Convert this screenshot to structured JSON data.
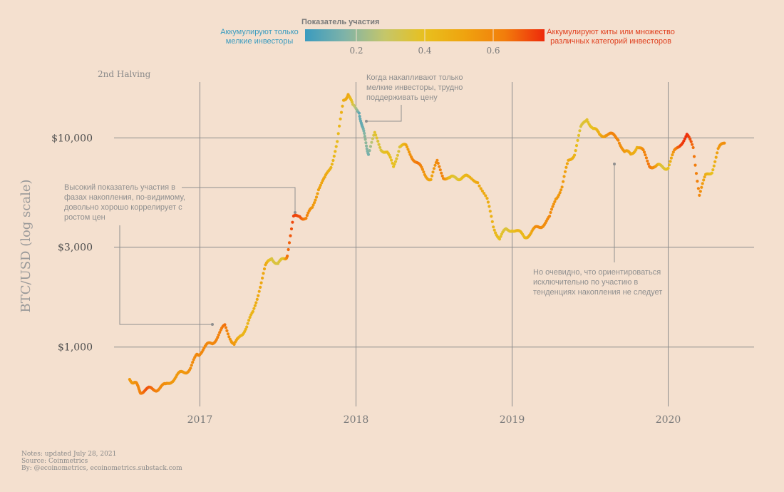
{
  "chart_data": {
    "type": "scatter",
    "title": "",
    "xlabel": "",
    "ylabel": "BTC/USD (log scale)",
    "y_scale": "log",
    "y_ticks": [
      {
        "value": 1000,
        "label": "$1,000"
      },
      {
        "value": 3000,
        "label": "$3,000"
      },
      {
        "value": 10000,
        "label": "$10,000"
      }
    ],
    "x_ticks": [
      {
        "value": 2017.0,
        "label": "2017"
      },
      {
        "value": 2018.0,
        "label": "2018"
      },
      {
        "value": 2019.0,
        "label": "2019"
      },
      {
        "value": 2020.0,
        "label": "2020"
      }
    ],
    "xlim": [
      2016.45,
      2020.55
    ],
    "ylim": [
      520,
      18500
    ],
    "grid": true,
    "vertical_marker": {
      "x": 2016.52,
      "label": "2nd Halving"
    },
    "color_legend": {
      "title": "Показатель участия",
      "left_label": [
        "Аккумулируют только",
        "мелкие инвесторы"
      ],
      "right_label": [
        "Аккумулируют киты или множество",
        "различных категорий инвесторов"
      ],
      "ticks": [
        0.2,
        0.4,
        0.6
      ],
      "range": [
        0.05,
        0.75
      ],
      "colors": [
        "#3a9bbf",
        "#7fb3a8",
        "#c5c66a",
        "#e8c01e",
        "#efa30f",
        "#f27d0c",
        "#ee2a0b"
      ]
    },
    "series": [
      {
        "color_by": "participation",
        "points": [
          [
            2016.55,
            700,
            0.55
          ],
          [
            2016.58,
            690,
            0.55
          ],
          [
            2016.6,
            640,
            0.6
          ],
          [
            2016.62,
            620,
            0.62
          ],
          [
            2016.66,
            620,
            0.7
          ],
          [
            2016.7,
            630,
            0.65
          ],
          [
            2016.74,
            640,
            0.6
          ],
          [
            2016.78,
            650,
            0.58
          ],
          [
            2016.82,
            700,
            0.55
          ],
          [
            2016.86,
            730,
            0.55
          ],
          [
            2016.9,
            760,
            0.55
          ],
          [
            2016.94,
            800,
            0.58
          ],
          [
            2016.98,
            900,
            0.6
          ],
          [
            2017.0,
            950,
            0.6
          ],
          [
            2017.04,
            1000,
            0.6
          ],
          [
            2017.08,
            1050,
            0.6
          ],
          [
            2017.12,
            1150,
            0.62
          ],
          [
            2017.16,
            1250,
            0.65
          ],
          [
            2017.2,
            1100,
            0.55
          ],
          [
            2017.22,
            1000,
            0.55
          ],
          [
            2017.26,
            1150,
            0.45
          ],
          [
            2017.3,
            1250,
            0.45
          ],
          [
            2017.34,
            1450,
            0.45
          ],
          [
            2017.38,
            1900,
            0.5
          ],
          [
            2017.42,
            2400,
            0.5
          ],
          [
            2017.46,
            2700,
            0.35
          ],
          [
            2017.5,
            2500,
            0.35
          ],
          [
            2017.54,
            2600,
            0.38
          ],
          [
            2017.56,
            2800,
            0.65
          ],
          [
            2017.6,
            4100,
            0.72
          ],
          [
            2017.64,
            4300,
            0.7
          ],
          [
            2017.68,
            4100,
            0.62
          ],
          [
            2017.72,
            4600,
            0.55
          ],
          [
            2017.76,
            5800,
            0.52
          ],
          [
            2017.8,
            6300,
            0.5
          ],
          [
            2017.84,
            7400,
            0.45
          ],
          [
            2017.88,
            9500,
            0.42
          ],
          [
            2017.92,
            15000,
            0.48
          ],
          [
            2017.95,
            16500,
            0.5
          ],
          [
            2017.98,
            14000,
            0.35
          ],
          [
            2018.02,
            13500,
            0.12
          ],
          [
            2018.04,
            11200,
            0.12
          ],
          [
            2018.06,
            9800,
            0.2
          ],
          [
            2018.08,
            8500,
            0.15
          ],
          [
            2018.12,
            10300,
            0.38
          ],
          [
            2018.16,
            9000,
            0.35
          ],
          [
            2018.2,
            8400,
            0.42
          ],
          [
            2018.24,
            7300,
            0.4
          ],
          [
            2018.28,
            9200,
            0.35
          ],
          [
            2018.32,
            9000,
            0.5
          ],
          [
            2018.36,
            8200,
            0.6
          ],
          [
            2018.4,
            7400,
            0.65
          ],
          [
            2018.44,
            6700,
            0.55
          ],
          [
            2018.48,
            6400,
            0.5
          ],
          [
            2018.52,
            7600,
            0.6
          ],
          [
            2018.56,
            6600,
            0.62
          ],
          [
            2018.6,
            6300,
            0.42
          ],
          [
            2018.64,
            6500,
            0.35
          ],
          [
            2018.68,
            6500,
            0.42
          ],
          [
            2018.72,
            6400,
            0.45
          ],
          [
            2018.78,
            6300,
            0.5
          ],
          [
            2018.84,
            5000,
            0.48
          ],
          [
            2018.88,
            3800,
            0.45
          ],
          [
            2018.92,
            3300,
            0.4
          ],
          [
            2018.96,
            3600,
            0.35
          ],
          [
            2019.0,
            3700,
            0.4
          ],
          [
            2019.04,
            3500,
            0.45
          ],
          [
            2019.08,
            3400,
            0.42
          ],
          [
            2019.12,
            3500,
            0.5
          ],
          [
            2019.16,
            3700,
            0.6
          ],
          [
            2019.2,
            3900,
            0.58
          ],
          [
            2019.24,
            4100,
            0.6
          ],
          [
            2019.28,
            5200,
            0.55
          ],
          [
            2019.32,
            5800,
            0.55
          ],
          [
            2019.36,
            7700,
            0.5
          ],
          [
            2019.4,
            8500,
            0.45
          ],
          [
            2019.44,
            11000,
            0.35
          ],
          [
            2019.48,
            12500,
            0.38
          ],
          [
            2019.52,
            11000,
            0.4
          ],
          [
            2019.56,
            10300,
            0.48
          ],
          [
            2019.6,
            10500,
            0.55
          ],
          [
            2019.64,
            10200,
            0.62
          ],
          [
            2019.68,
            10000,
            0.6
          ],
          [
            2019.72,
            8500,
            0.55
          ],
          [
            2019.76,
            8300,
            0.5
          ],
          [
            2019.8,
            9200,
            0.45
          ],
          [
            2019.84,
            8500,
            0.6
          ],
          [
            2019.88,
            7500,
            0.65
          ],
          [
            2019.92,
            7200,
            0.55
          ],
          [
            2019.96,
            7300,
            0.35
          ],
          [
            2020.0,
            7300,
            0.4
          ],
          [
            2020.04,
            8500,
            0.6
          ],
          [
            2020.08,
            9500,
            0.72
          ],
          [
            2020.12,
            10200,
            0.75
          ],
          [
            2020.16,
            9000,
            0.65
          ],
          [
            2020.2,
            5400,
            0.6
          ],
          [
            2020.24,
            6500,
            0.48
          ],
          [
            2020.28,
            7000,
            0.4
          ],
          [
            2020.32,
            8700,
            0.55
          ],
          [
            2020.36,
            9500,
            0.58
          ]
        ]
      }
    ],
    "annotations": [
      {
        "lines": [
          "Высокий показатель участия в",
          "фазах накопления, по-видимому,",
          "довольно хорошо коррелирует с",
          "ростом цен"
        ]
      },
      {
        "lines": [
          "Когда накапливают только",
          "мелкие инвесторы, трудно",
          "поддерживать цену"
        ]
      },
      {
        "lines": [
          "Но очевидно, что ориентироваться",
          "исключительно по участию в",
          "тенденциях накопления не следует"
        ]
      }
    ]
  },
  "notes": {
    "line1": "Notes: updated July 28, 2021",
    "line2": "Source: Coinmetrics",
    "line3": "By: @ecoinometrics, ecoinometrics.substack.com"
  }
}
